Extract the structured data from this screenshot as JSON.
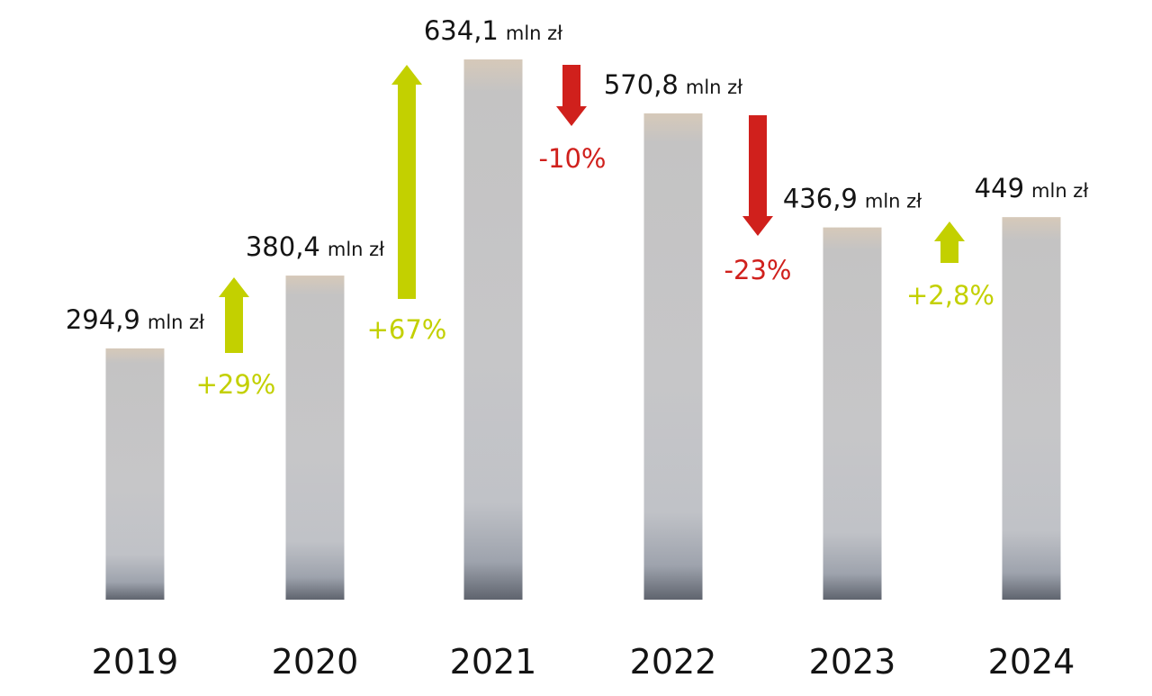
{
  "chart_data": {
    "type": "bar",
    "categories": [
      "2019",
      "2020",
      "2021",
      "2022",
      "2023",
      "2024"
    ],
    "values": [
      294.9,
      380.4,
      634.1,
      570.8,
      436.9,
      449
    ],
    "value_labels": [
      "294,9",
      "380,4",
      "634,1",
      "570,8",
      "436,9",
      "449"
    ],
    "unit": "mln zł",
    "changes": [
      {
        "from": "2019",
        "to": "2020",
        "label": "+29%",
        "direction": "up"
      },
      {
        "from": "2020",
        "to": "2021",
        "label": "+67%",
        "direction": "up"
      },
      {
        "from": "2021",
        "to": "2022",
        "label": "-10%",
        "direction": "down"
      },
      {
        "from": "2022",
        "to": "2023",
        "label": "-23%",
        "direction": "down"
      },
      {
        "from": "2023",
        "to": "2024",
        "label": "+2,8%",
        "direction": "up"
      }
    ],
    "colors": {
      "up": "#c3d000",
      "down": "#d0201c",
      "bar": "#c2c2c4",
      "text": "#141414"
    },
    "ylim": [
      0,
      634.1
    ],
    "grid": false,
    "legend": "none"
  }
}
